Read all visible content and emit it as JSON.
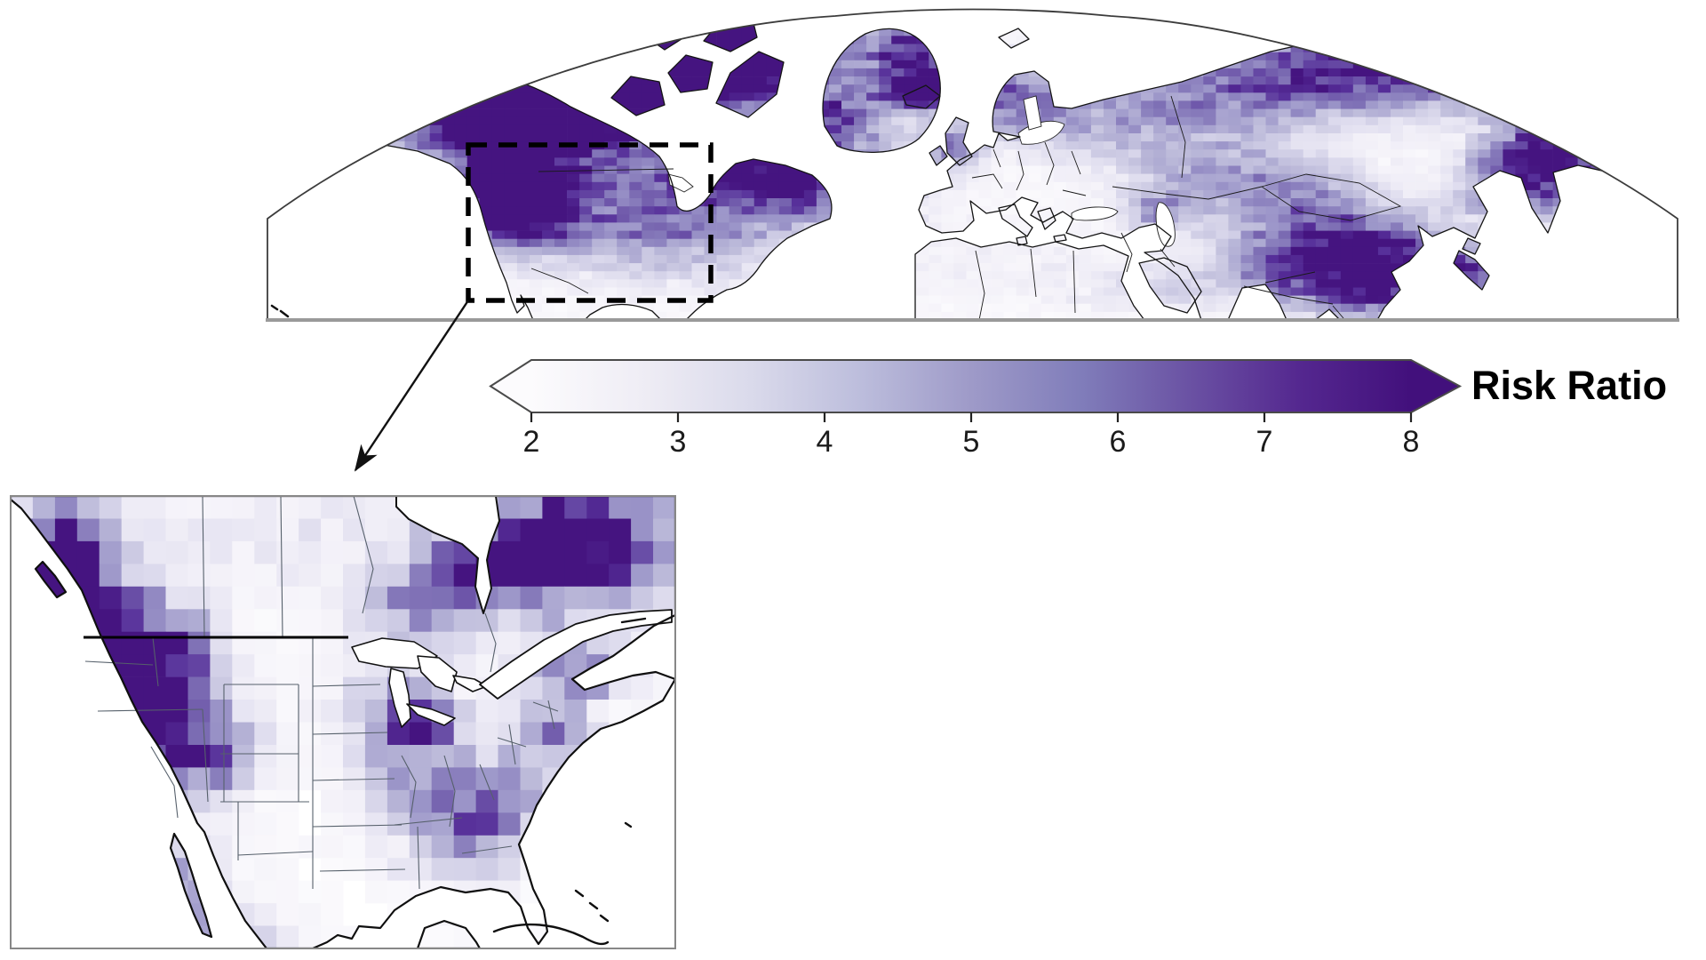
{
  "colorbar": {
    "title": "Risk Ratio",
    "ticks": [
      "2",
      "3",
      "4",
      "5",
      "6",
      "7",
      "8"
    ],
    "min": 2,
    "max": 8,
    "gradient_stops": [
      "#fcfbfd",
      "#efedf5",
      "#dadaeb",
      "#bcbddc",
      "#9e9ac8",
      "#807dba",
      "#6a51a3",
      "#54278f",
      "#42107c"
    ],
    "border_color": "#4a4a4a",
    "tick_color": "#222222",
    "label_color": "#000000"
  },
  "chart_data": {
    "type": "heatmap",
    "variable": "Risk Ratio",
    "value_range": [
      2,
      8
    ],
    "colormap": [
      "#ffffff",
      "#f4f2f9",
      "#dedcee",
      "#bdbbda",
      "#9c96c9",
      "#7a6ab2",
      "#57309a",
      "#42107c"
    ],
    "legend": {
      "title": "Risk Ratio",
      "ticks": [
        2,
        3,
        4,
        5,
        6,
        7,
        8
      ],
      "position": "below hemisphere map",
      "shape": "double-arrow gradient bar"
    },
    "maps": [
      {
        "id": "northern-hemisphere",
        "description": "Dome-shaped northern-hemisphere projection, white ocean, land shaded white-to-dark-purple by risk ratio; dashed rectangle over North America linked by arrow to inset",
        "high_risk_regions": [
          "Alaska",
          "Yukon and northwestern Canada",
          "British Columbia coast",
          "Canadian Arctic Archipelago",
          "Greenland coasts",
          "Quebec-Labrador",
          "western United States Great Basin",
          "Iceland",
          "northeastern Siberia",
          "Chukotka",
          "Kamchatka",
          "Tibetan Plateau"
        ],
        "low_risk_regions": [
          "central North American plains",
          "North Atlantic",
          "Sahara and North Africa",
          "Arabian Peninsula",
          "central Europe"
        ],
        "field": {
          "base": 0.07,
          "blobs": [
            [
              0.15,
              0.24,
              0.04,
              0.1,
              1.1
            ],
            [
              0.19,
              0.285,
              0.05,
              0.11,
              1.05
            ],
            [
              0.24,
              0.3,
              0.045,
              0.1,
              0.8
            ],
            [
              0.173,
              0.5,
              0.028,
              0.14,
              0.9
            ],
            [
              0.175,
              0.64,
              0.03,
              0.09,
              0.7
            ],
            [
              0.08,
              0.44,
              0.045,
              0.035,
              0.3
            ],
            [
              0.24,
              0.6,
              0.06,
              0.14,
              0.33
            ],
            [
              0.3,
              0.7,
              0.06,
              0.12,
              0.4
            ],
            [
              0.285,
              0.175,
              0.045,
              0.1,
              1.05
            ],
            [
              0.345,
              0.16,
              0.04,
              0.09,
              1.0
            ],
            [
              0.33,
              0.07,
              0.05,
              0.06,
              0.95
            ],
            [
              0.46,
              0.16,
              0.025,
              0.1,
              0.85
            ],
            [
              0.405,
              0.33,
              0.025,
              0.08,
              0.6
            ],
            [
              0.38,
              0.55,
              0.05,
              0.09,
              0.7
            ],
            [
              0.335,
              0.48,
              0.04,
              0.07,
              0.5
            ],
            [
              0.465,
              0.26,
              0.015,
              0.035,
              0.85
            ],
            [
              0.485,
              0.44,
              0.015,
              0.05,
              0.5
            ],
            [
              0.53,
              0.26,
              0.025,
              0.08,
              0.5
            ],
            [
              0.56,
              0.38,
              0.04,
              0.06,
              0.2
            ],
            [
              0.625,
              0.3,
              0.06,
              0.1,
              0.35
            ],
            [
              0.665,
              0.5,
              0.05,
              0.08,
              0.3
            ],
            [
              0.72,
              0.22,
              0.06,
              0.1,
              0.55
            ],
            [
              0.85,
              0.15,
              0.07,
              0.1,
              1.05
            ],
            [
              0.945,
              0.38,
              0.04,
              0.12,
              1.0
            ],
            [
              0.97,
              0.65,
              0.03,
              0.1,
              0.75
            ],
            [
              0.765,
              0.8,
              0.05,
              0.09,
              1.25
            ],
            [
              0.72,
              0.6,
              0.05,
              0.08,
              0.4
            ],
            [
              0.89,
              0.49,
              0.025,
              0.06,
              0.7
            ],
            [
              0.885,
              0.6,
              0.03,
              0.05,
              0.5
            ],
            [
              0.855,
              0.84,
              0.025,
              0.05,
              0.45
            ],
            [
              0.63,
              0.645,
              0.015,
              0.04,
              0.5
            ],
            [
              0.8,
              0.93,
              0.05,
              0.05,
              0.45
            ],
            [
              0.63,
              0.9,
              0.04,
              0.06,
              0.18
            ],
            [
              0.52,
              0.8,
              0.08,
              0.1,
              0.08
            ]
          ]
        }
      },
      {
        "id": "north-america-inset",
        "description": "Zoomed pixelated grid map of the continental United States, southern Canada and northern Mexico",
        "high_risk_regions": [
          "British Columbia coast",
          "Washington Cascades",
          "northern Rockies (Idaho/Montana)",
          "Great Basin (Nevada/Utah/Oregon)",
          "coastal California",
          "Colorado Plateau",
          "Quebec",
          "northern Ontario",
          "Great Lakes / Michigan",
          "southern Appalachians",
          "Northeast"
        ],
        "low_risk_regions": [
          "Great Plains",
          "Texas",
          "Gulf Coast",
          "Florida"
        ],
        "field": {
          "base": 0.07,
          "blobs": [
            [
              0.065,
              0.16,
              0.055,
              0.1,
              1.05
            ],
            [
              0.11,
              0.28,
              0.05,
              0.08,
              0.9
            ],
            [
              0.21,
              0.34,
              0.06,
              0.08,
              0.8
            ],
            [
              0.185,
              0.52,
              0.085,
              0.1,
              1.05
            ],
            [
              0.145,
              0.42,
              0.06,
              0.07,
              0.75
            ],
            [
              0.125,
              0.68,
              0.035,
              0.07,
              0.7
            ],
            [
              0.3,
              0.57,
              0.05,
              0.06,
              0.5
            ],
            [
              0.26,
              0.87,
              0.04,
              0.07,
              0.5
            ],
            [
              0.33,
              0.97,
              0.05,
              0.05,
              0.35
            ],
            [
              0.585,
              0.47,
              0.06,
              0.07,
              0.5
            ],
            [
              0.62,
              0.5,
              0.025,
              0.035,
              0.65
            ],
            [
              0.61,
              0.63,
              0.06,
              0.07,
              0.42
            ],
            [
              0.68,
              0.77,
              0.06,
              0.06,
              0.45
            ],
            [
              0.73,
              0.67,
              0.05,
              0.06,
              0.5
            ],
            [
              0.81,
              0.53,
              0.05,
              0.06,
              0.48
            ],
            [
              0.87,
              0.1,
              0.1,
              0.09,
              1.05
            ],
            [
              0.74,
              0.16,
              0.08,
              0.07,
              0.65
            ],
            [
              0.62,
              0.25,
              0.06,
              0.06,
              0.5
            ],
            [
              0.85,
              0.38,
              0.06,
              0.05,
              0.55
            ],
            [
              0.45,
              0.08,
              0.25,
              0.1,
              0.12
            ]
          ]
        }
      }
    ],
    "annotations": {
      "dashed_box": "zoom region over western/central North America on hemisphere map",
      "arrow": "from dashed box corner to inset map"
    }
  }
}
